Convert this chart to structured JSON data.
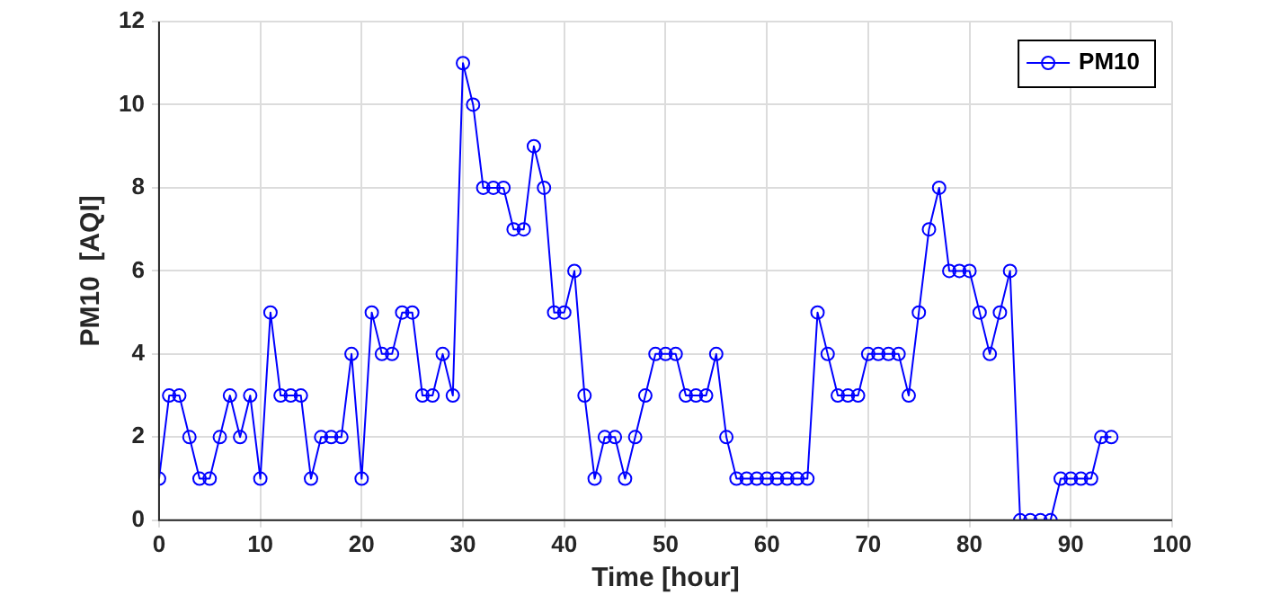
{
  "chart_data": {
    "type": "line",
    "xlabel": "Time [hour]",
    "ylabel": "PM10  [AQI]",
    "xlim": [
      0,
      100
    ],
    "xticks": [
      0,
      10,
      20,
      30,
      40,
      50,
      60,
      70,
      80,
      90,
      100
    ],
    "ylim": [
      0,
      12
    ],
    "yticks": [
      0,
      2,
      4,
      6,
      8,
      10,
      12
    ],
    "grid": true,
    "legend": "top right",
    "marker": "circle",
    "line_style": "solid",
    "x": [
      0,
      1,
      2,
      3,
      4,
      5,
      6,
      7,
      8,
      9,
      10,
      11,
      12,
      13,
      14,
      15,
      16,
      17,
      18,
      19,
      20,
      21,
      22,
      23,
      24,
      25,
      26,
      27,
      28,
      29,
      30,
      31,
      32,
      33,
      34,
      35,
      36,
      37,
      38,
      39,
      40,
      41,
      42,
      43,
      44,
      45,
      46,
      47,
      48,
      49,
      50,
      51,
      52,
      53,
      54,
      55,
      56,
      57,
      58,
      59,
      60,
      61,
      62,
      63,
      64,
      65,
      66,
      67,
      68,
      69,
      70,
      71,
      72,
      73,
      74,
      75,
      76,
      77,
      78,
      79,
      80,
      81,
      82,
      83,
      84,
      85,
      86,
      87,
      88,
      89,
      90,
      91,
      92,
      93,
      94
    ],
    "series": [
      {
        "name": "PM10",
        "color": "#0000ff",
        "values": [
          1,
          3,
          3,
          2,
          1,
          1,
          2,
          3,
          2,
          3,
          1,
          5,
          3,
          3,
          3,
          1,
          2,
          2,
          2,
          4,
          1,
          5,
          4,
          4,
          5,
          5,
          3,
          3,
          4,
          3,
          11,
          10,
          8,
          8,
          8,
          7,
          7,
          9,
          8,
          5,
          5,
          6,
          3,
          1,
          2,
          2,
          1,
          2,
          3,
          4,
          4,
          4,
          3,
          3,
          3,
          4,
          2,
          1,
          1,
          1,
          1,
          1,
          1,
          1,
          1,
          5,
          4,
          3,
          3,
          3,
          4,
          4,
          4,
          4,
          3,
          5,
          7,
          8,
          6,
          6,
          6,
          5,
          4,
          5,
          6,
          0,
          0,
          0,
          0,
          1,
          1,
          1,
          1,
          2,
          2
        ]
      }
    ]
  }
}
